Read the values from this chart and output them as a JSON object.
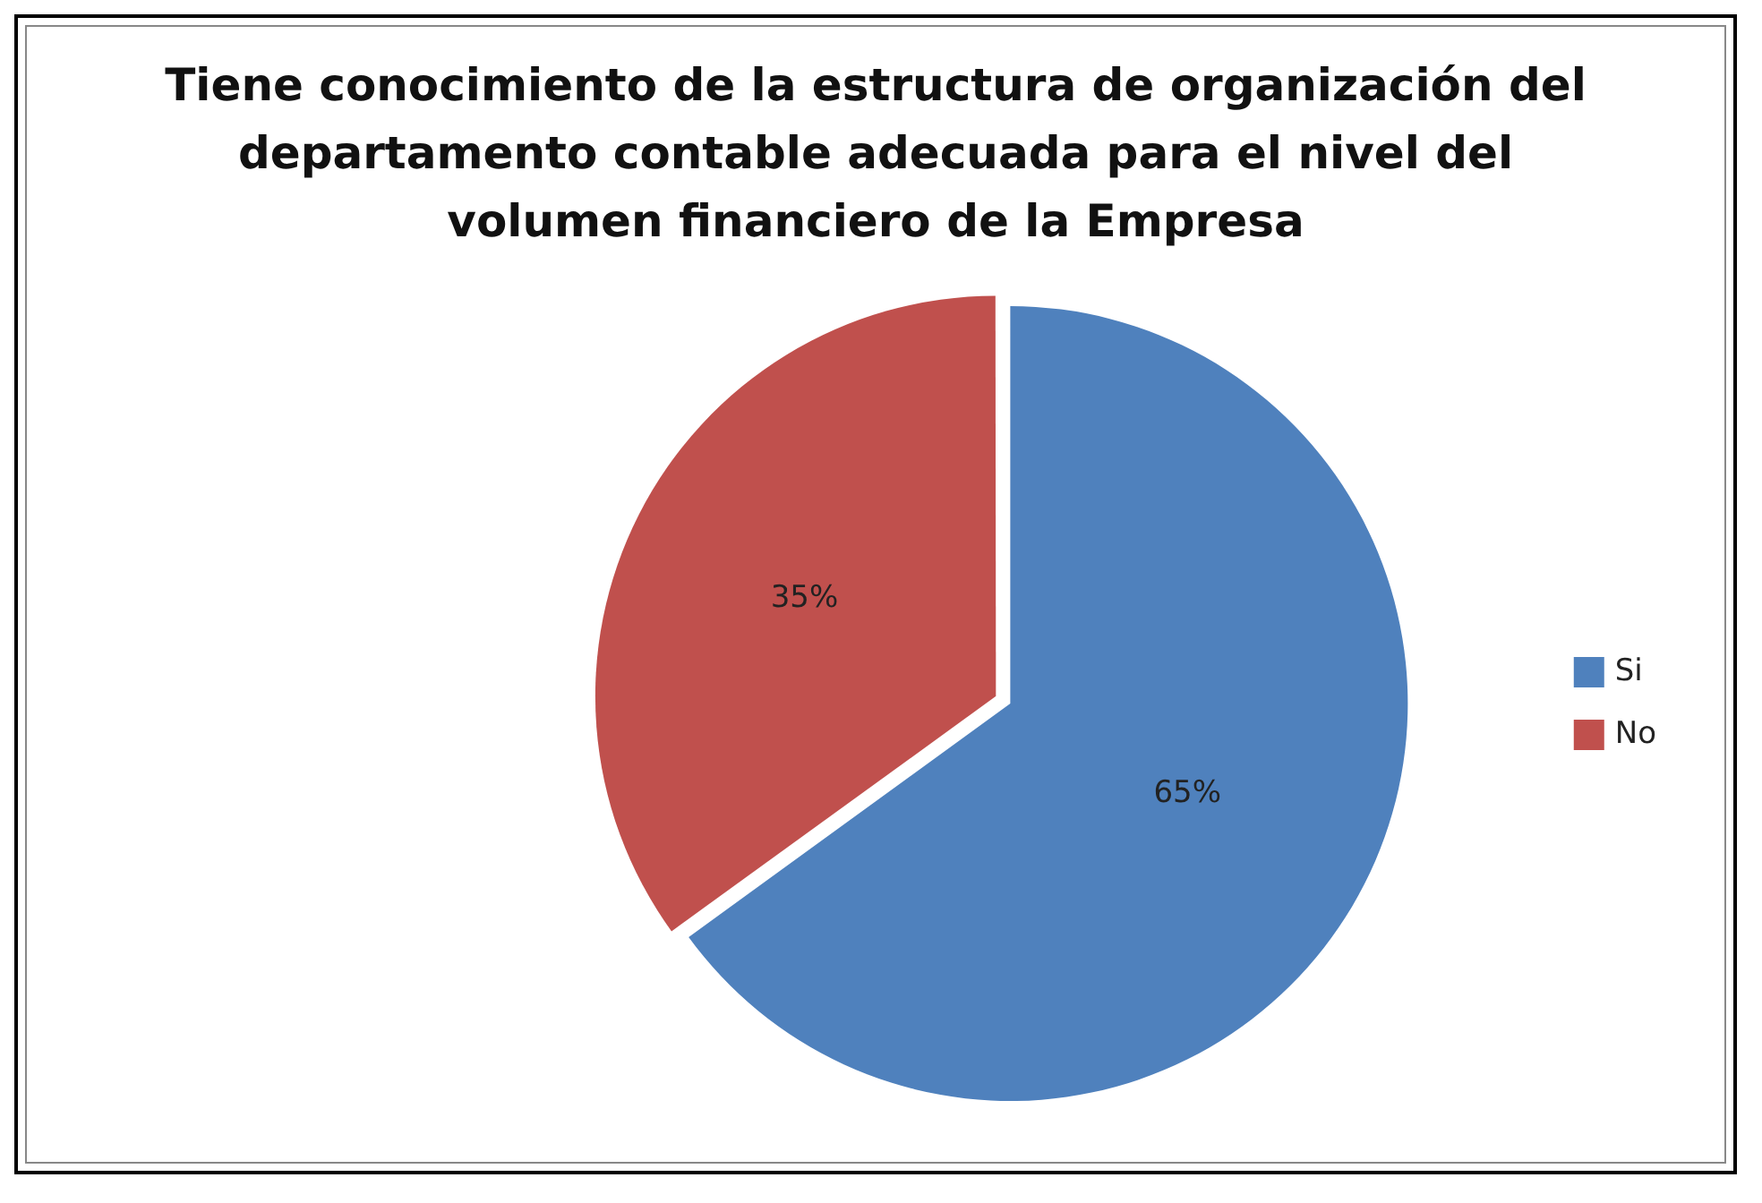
{
  "chart_data": {
    "type": "pie",
    "title": "Tiene conocimiento de la  estructura de organización del departamento contable adecuada para el nivel del volumen financiero de la Empresa",
    "categories": [
      "Si",
      "No"
    ],
    "values": [
      65,
      35
    ],
    "value_labels": [
      "65%",
      "35%"
    ],
    "colors": [
      "#4f81bd",
      "#c0504d"
    ],
    "legend": "right"
  }
}
